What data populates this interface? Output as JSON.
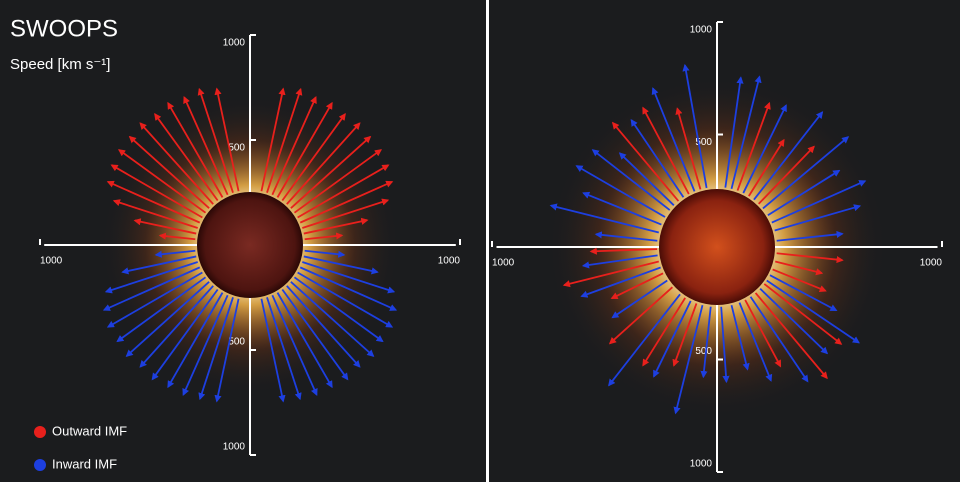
{
  "chart_data": [
    {
      "type": "polar-arrows",
      "title": "SWOOPS",
      "axis_label": "Speed [km s⁻¹]",
      "rlim": [
        0,
        1000
      ],
      "rticks": [
        500,
        1000
      ],
      "series": [
        {
          "name": "Outward IMF",
          "color": "#e8201c",
          "x": [
            -84,
            -78,
            -72,
            -66,
            -60,
            -54,
            -48,
            -42,
            -36,
            -30,
            -24,
            -18,
            -12,
            12,
            18,
            24,
            30,
            36,
            42,
            48,
            54,
            60,
            66,
            72,
            78,
            84
          ],
          "values": [
            430,
            560,
            680,
            740,
            760,
            770,
            770,
            780,
            770,
            780,
            770,
            780,
            760,
            760,
            780,
            770,
            780,
            770,
            780,
            770,
            770,
            760,
            740,
            690,
            570,
            440
          ]
        },
        {
          "name": "Inward IMF",
          "color": "#1d3fe0",
          "x": [
            96,
            102,
            108,
            114,
            120,
            126,
            132,
            138,
            144,
            150,
            156,
            162,
            168,
            192,
            198,
            204,
            210,
            216,
            222,
            228,
            234,
            240,
            246,
            252,
            258,
            264
          ],
          "values": [
            450,
            620,
            720,
            760,
            780,
            780,
            790,
            780,
            790,
            780,
            780,
            770,
            760,
            760,
            770,
            780,
            780,
            790,
            780,
            790,
            780,
            780,
            760,
            720,
            620,
            450
          ]
        }
      ]
    },
    {
      "type": "polar-arrows",
      "rlim": [
        0,
        1000
      ],
      "rticks": [
        500,
        1000
      ],
      "series": [
        {
          "color": "#e8201c",
          "x": [
            -40,
            -28,
            -16,
            20,
            32,
            44,
            96,
            104,
            112,
            128,
            140,
            152,
            200,
            212,
            228,
            244,
            256,
            268
          ],
          "values": [
            720,
            700,
            640,
            680,
            560,
            620,
            560,
            480,
            520,
            700,
            760,
            600,
            560,
            620,
            640,
            520,
            700,
            560
          ]
        },
        {
          "color": "#1d3fe0",
          "x": [
            -76,
            -68,
            -60,
            -52,
            -46,
            -34,
            -22,
            -10,
            8,
            14,
            26,
            38,
            50,
            58,
            66,
            74,
            84,
            118,
            124,
            134,
            146,
            158,
            166,
            176,
            186,
            194,
            206,
            218,
            236,
            250,
            262,
            276
          ],
          "values": [
            760,
            640,
            720,
            700,
            600,
            680,
            760,
            820,
            760,
            780,
            700,
            760,
            760,
            640,
            720,
            660,
            560,
            600,
            760,
            680,
            720,
            640,
            560,
            600,
            580,
            760,
            640,
            780,
            560,
            640,
            600,
            540
          ]
        }
      ]
    }
  ]
}
